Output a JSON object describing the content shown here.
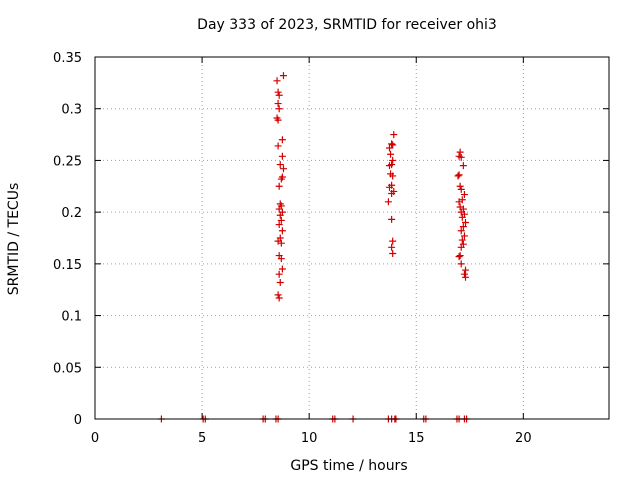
{
  "chart_data": {
    "type": "scatter",
    "title": "Day 333 of 2023, SRMTID for receiver ohi3",
    "xlabel": "GPS time / hours",
    "ylabel": "SRMTID / TECUs",
    "xlim": [
      0,
      24
    ],
    "ylim": [
      0,
      0.35
    ],
    "grid": true,
    "marker": "+",
    "color": "#d40000",
    "xticks": [
      0,
      5,
      10,
      15,
      20
    ],
    "xtick_labels": [
      "0",
      "5",
      "10",
      "15",
      "20"
    ],
    "yticks": [
      0,
      0.05,
      0.1,
      0.15,
      0.2,
      0.25,
      0.3,
      0.35
    ],
    "ytick_labels": [
      "0",
      "0.05",
      "0.1",
      "0.15",
      "0.2",
      "0.25",
      "0.3",
      "0.35"
    ],
    "series": [
      {
        "name": "SRMTID",
        "points": [
          [
            3.1,
            0
          ],
          [
            5.05,
            0
          ],
          [
            5.15,
            0
          ],
          [
            7.85,
            0
          ],
          [
            7.95,
            0
          ],
          [
            8.45,
            0
          ],
          [
            8.55,
            0
          ],
          [
            11.1,
            0
          ],
          [
            11.2,
            0
          ],
          [
            12.05,
            0
          ],
          [
            13.7,
            0
          ],
          [
            13.85,
            0
          ],
          [
            14.0,
            0
          ],
          [
            14.05,
            0
          ],
          [
            15.35,
            0
          ],
          [
            15.45,
            0
          ],
          [
            16.9,
            0
          ],
          [
            17.0,
            0
          ],
          [
            17.25,
            0
          ],
          [
            17.35,
            0
          ],
          [
            8.5,
            0.327
          ],
          [
            8.55,
            0.316
          ],
          [
            8.6,
            0.313
          ],
          [
            8.8,
            0.332
          ],
          [
            8.55,
            0.305
          ],
          [
            8.6,
            0.3
          ],
          [
            8.5,
            0.291
          ],
          [
            8.55,
            0.289
          ],
          [
            8.75,
            0.27
          ],
          [
            8.55,
            0.264
          ],
          [
            8.75,
            0.254
          ],
          [
            8.65,
            0.246
          ],
          [
            8.8,
            0.242
          ],
          [
            8.75,
            0.234
          ],
          [
            8.7,
            0.232
          ],
          [
            8.6,
            0.225
          ],
          [
            8.65,
            0.208
          ],
          [
            8.7,
            0.206
          ],
          [
            8.6,
            0.203
          ],
          [
            8.75,
            0.2
          ],
          [
            8.65,
            0.197
          ],
          [
            8.7,
            0.192
          ],
          [
            8.6,
            0.188
          ],
          [
            8.75,
            0.182
          ],
          [
            8.65,
            0.175
          ],
          [
            8.55,
            0.172
          ],
          [
            8.7,
            0.17
          ],
          [
            8.6,
            0.158
          ],
          [
            8.7,
            0.155
          ],
          [
            8.75,
            0.145
          ],
          [
            8.6,
            0.14
          ],
          [
            8.65,
            0.132
          ],
          [
            8.55,
            0.12
          ],
          [
            8.6,
            0.117
          ],
          [
            13.95,
            0.275
          ],
          [
            13.85,
            0.266
          ],
          [
            13.9,
            0.265
          ],
          [
            13.75,
            0.262
          ],
          [
            13.8,
            0.256
          ],
          [
            13.9,
            0.25
          ],
          [
            13.85,
            0.246
          ],
          [
            13.75,
            0.245
          ],
          [
            13.8,
            0.237
          ],
          [
            13.9,
            0.235
          ],
          [
            13.85,
            0.226
          ],
          [
            13.75,
            0.224
          ],
          [
            13.95,
            0.22
          ],
          [
            13.85,
            0.218
          ],
          [
            13.7,
            0.21
          ],
          [
            13.85,
            0.193
          ],
          [
            13.9,
            0.172
          ],
          [
            13.85,
            0.166
          ],
          [
            13.9,
            0.16
          ],
          [
            17.05,
            0.258
          ],
          [
            17.0,
            0.254
          ],
          [
            17.1,
            0.253
          ],
          [
            17.2,
            0.245
          ],
          [
            17.0,
            0.236
          ],
          [
            16.95,
            0.235
          ],
          [
            17.05,
            0.225
          ],
          [
            17.1,
            0.222
          ],
          [
            17.25,
            0.217
          ],
          [
            17.15,
            0.212
          ],
          [
            17.0,
            0.21
          ],
          [
            17.05,
            0.205
          ],
          [
            17.2,
            0.203
          ],
          [
            17.1,
            0.2
          ],
          [
            17.25,
            0.198
          ],
          [
            17.15,
            0.195
          ],
          [
            17.3,
            0.19
          ],
          [
            17.2,
            0.186
          ],
          [
            17.1,
            0.182
          ],
          [
            17.25,
            0.177
          ],
          [
            17.15,
            0.173
          ],
          [
            17.2,
            0.169
          ],
          [
            17.1,
            0.166
          ],
          [
            17.05,
            0.158
          ],
          [
            17.0,
            0.157
          ],
          [
            17.1,
            0.15
          ],
          [
            17.3,
            0.144
          ],
          [
            17.25,
            0.14
          ],
          [
            17.3,
            0.137
          ]
        ]
      }
    ]
  }
}
